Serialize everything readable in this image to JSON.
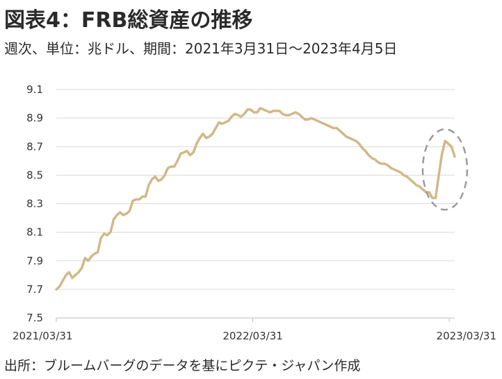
{
  "title": "図表4：FRB総資産の推移",
  "subtitle": "週次、単位：兆ドル、期間：2021年3月31日～2023年4月5日",
  "source": "出所：ブルームバーグのデータを基にピクテ・ジャパン作成",
  "chart_data": {
    "type": "line",
    "x_range": [
      "2021/03/31",
      "2023/04/05"
    ],
    "ylim": [
      7.5,
      9.1
    ],
    "yticks": [
      "9.1",
      "8.9",
      "8.7",
      "8.5",
      "8.3",
      "8.1",
      "7.9",
      "7.7",
      "7.5"
    ],
    "xticks": [
      "2021/03/31",
      "2022/03/31",
      "2023/03/31"
    ],
    "grid": "horizontal",
    "line_color": "#d2b888",
    "highlight_color": "#9a9a9a",
    "series": [
      {
        "values": [
          7.7,
          7.72,
          7.76,
          7.8,
          7.82,
          7.78,
          7.8,
          7.82,
          7.85,
          7.92,
          7.9,
          7.93,
          7.95,
          7.96,
          8.06,
          8.09,
          8.08,
          8.1,
          8.19,
          8.22,
          8.24,
          8.22,
          8.23,
          8.25,
          8.32,
          8.33,
          8.33,
          8.35,
          8.35,
          8.43,
          8.47,
          8.49,
          8.46,
          8.47,
          8.5,
          8.55,
          8.56,
          8.56,
          8.6,
          8.65,
          8.66,
          8.67,
          8.64,
          8.66,
          8.72,
          8.76,
          8.79,
          8.76,
          8.77,
          8.79,
          8.83,
          8.87,
          8.86,
          8.87,
          8.88,
          8.91,
          8.93,
          8.92,
          8.91,
          8.93,
          8.96,
          8.96,
          8.94,
          8.94,
          8.97,
          8.96,
          8.95,
          8.94,
          8.95,
          8.95,
          8.95,
          8.93,
          8.92,
          8.92,
          8.93,
          8.94,
          8.93,
          8.91,
          8.89,
          8.89,
          8.9,
          8.89,
          8.88,
          8.87,
          8.86,
          8.85,
          8.84,
          8.83,
          8.83,
          8.81,
          8.79,
          8.77,
          8.76,
          8.75,
          8.74,
          8.72,
          8.69,
          8.67,
          8.64,
          8.62,
          8.61,
          8.59,
          8.58,
          8.58,
          8.57,
          8.55,
          8.54,
          8.53,
          8.52,
          8.5,
          8.49,
          8.47,
          8.45,
          8.43,
          8.42,
          8.4,
          8.38,
          8.38,
          8.34,
          8.34,
          8.5,
          8.65,
          8.74,
          8.72,
          8.7,
          8.63
        ]
      }
    ]
  }
}
